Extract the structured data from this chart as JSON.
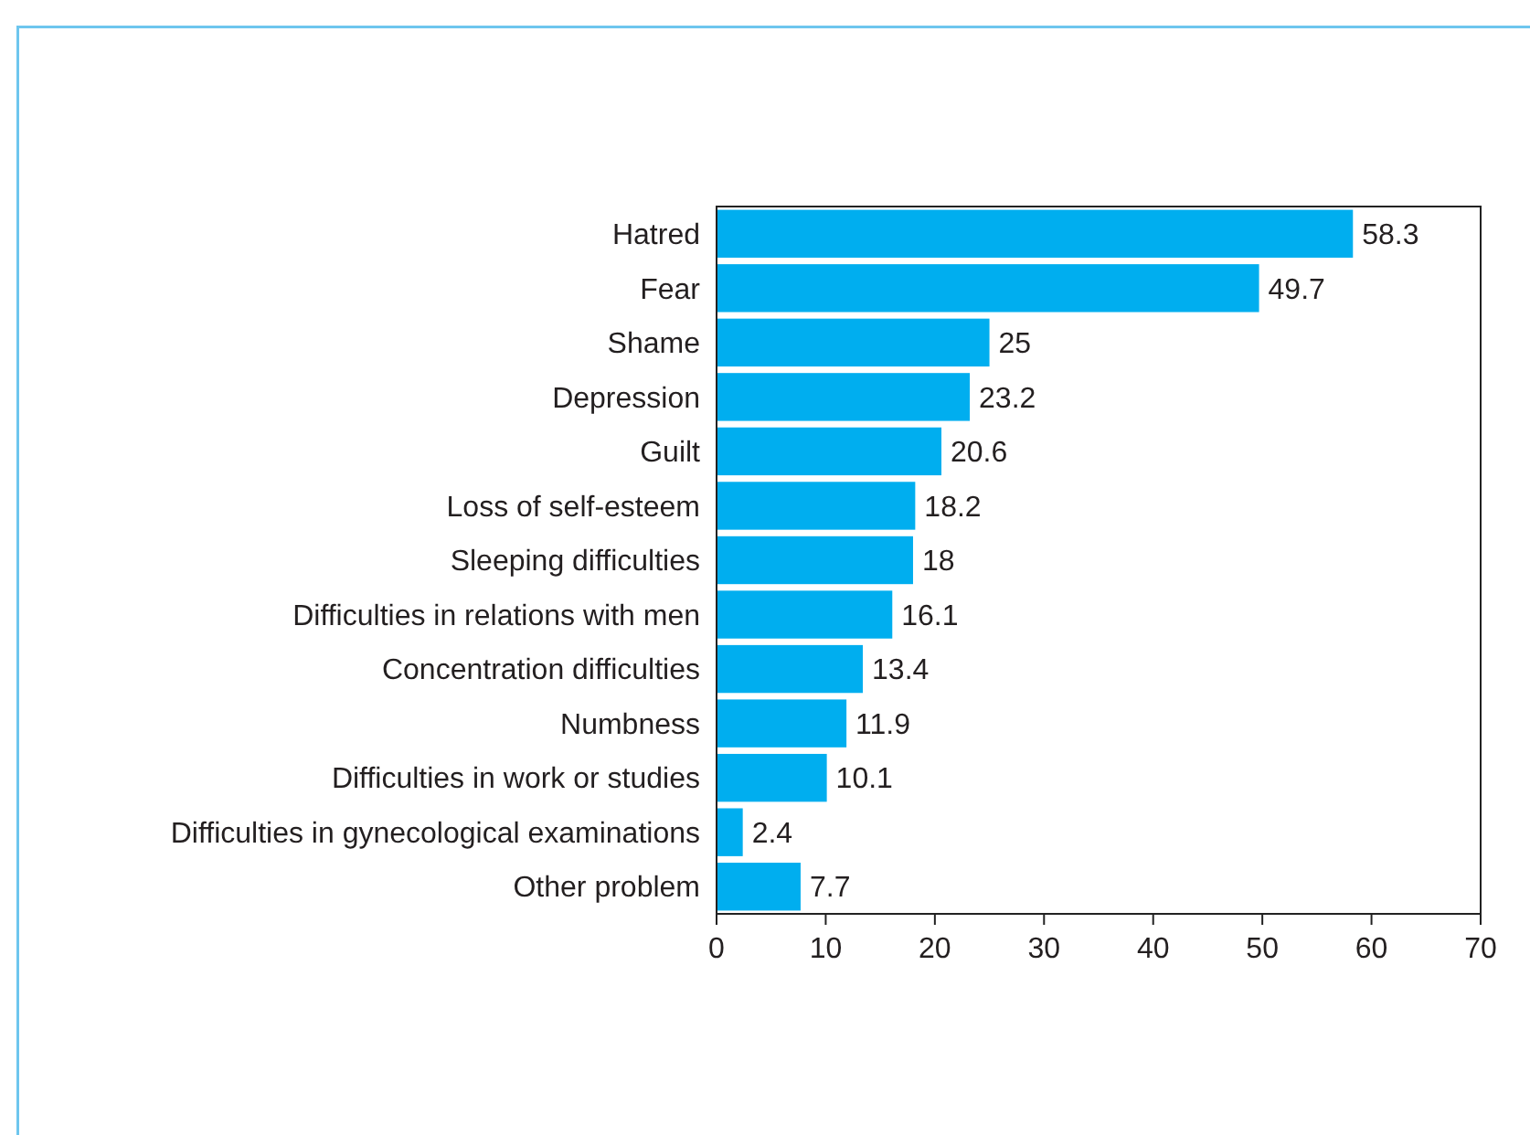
{
  "chart_data": {
    "type": "bar",
    "orientation": "horizontal",
    "categories": [
      "Hatred",
      "Fear",
      "Shame",
      "Depression",
      "Guilt",
      "Loss of self-esteem",
      "Sleeping difficulties",
      "Difficulties in relations with men",
      "Concentration difficulties",
      "Numbness",
      "Difficulties in work or studies",
      "Difficulties in gynecological examinations",
      "Other problem"
    ],
    "values": [
      58.3,
      49.7,
      25,
      23.2,
      20.6,
      18.2,
      18,
      16.1,
      13.4,
      11.9,
      10.1,
      2.4,
      7.7
    ],
    "color": "#00aeef",
    "xlim": [
      0,
      70
    ],
    "xticks": [
      0,
      10,
      20,
      30,
      40,
      50,
      60,
      70
    ],
    "data_labels": true,
    "grid": false
  }
}
